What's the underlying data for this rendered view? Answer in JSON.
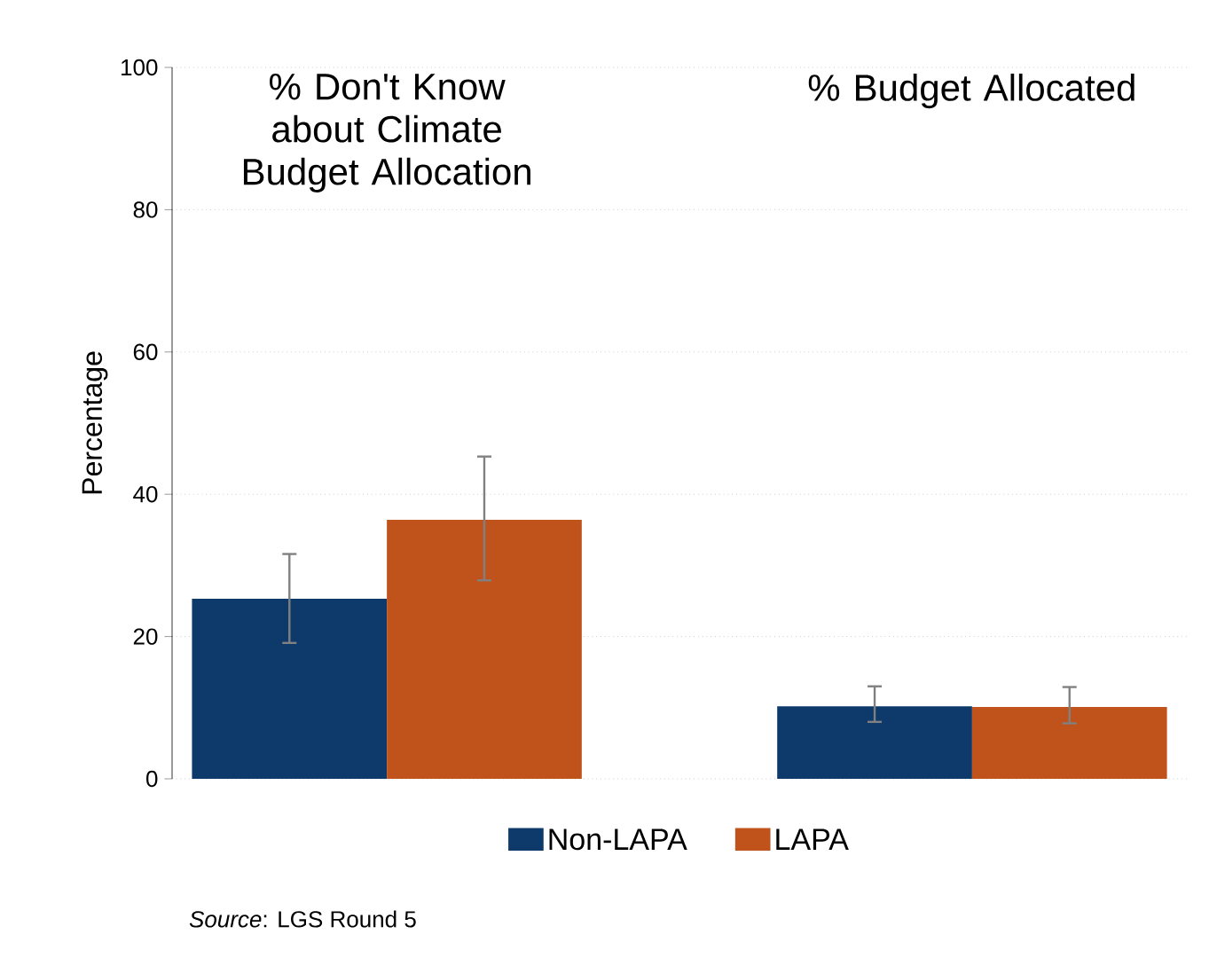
{
  "chart_data": {
    "type": "bar",
    "categories": [
      "% Don't Know about Climate Budget Allocation",
      "% Budget Allocated"
    ],
    "ylabel": "Percentage",
    "ylim": [
      0,
      100
    ],
    "yticks": [
      0,
      20,
      40,
      60,
      80,
      100
    ],
    "grid": "y",
    "legend": "bottom",
    "series": [
      {
        "name": "Non-LAPA",
        "color": "#0d3a6b",
        "values": [
          25.3,
          10.2
        ],
        "errors": [
          [
            19.1,
            31.6
          ],
          [
            8.0,
            13.0
          ]
        ]
      },
      {
        "name": "LAPA",
        "color": "#c0531c",
        "values": [
          36.4,
          10.1
        ],
        "errors": [
          [
            27.9,
            45.3
          ],
          [
            7.8,
            12.9
          ]
        ]
      }
    ],
    "annotations": [
      "*Source*: LGS Round 5"
    ]
  }
}
